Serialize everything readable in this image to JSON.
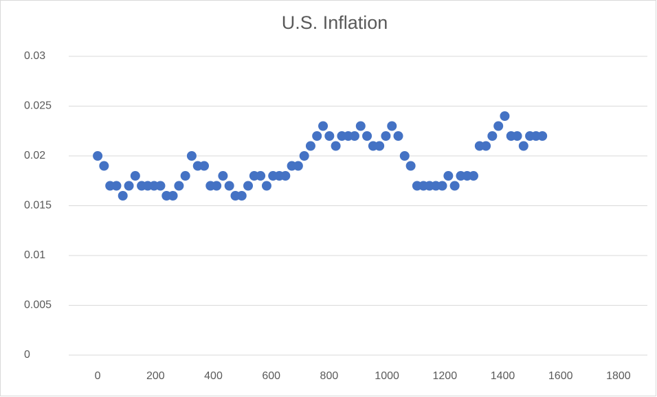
{
  "chart_data": {
    "type": "scatter",
    "title": "U.S. Inflation",
    "x": [
      0,
      22,
      43,
      65,
      87,
      108,
      130,
      152,
      173,
      195,
      217,
      238,
      260,
      281,
      303,
      325,
      346,
      368,
      390,
      411,
      433,
      455,
      476,
      498,
      520,
      541,
      563,
      584,
      606,
      628,
      649,
      671,
      693,
      714,
      736,
      758,
      779,
      801,
      823,
      844,
      866,
      888,
      909,
      931,
      952,
      974,
      996,
      1017,
      1039,
      1061,
      1082,
      1104,
      1126,
      1147,
      1169,
      1191,
      1212,
      1234,
      1255,
      1277,
      1299,
      1320,
      1342,
      1364,
      1385,
      1407,
      1429,
      1450,
      1472,
      1494,
      1515,
      1537
    ],
    "series": [
      {
        "color": "#4472c4",
        "values": [
          0.02,
          0.019,
          0.017,
          0.017,
          0.016,
          0.017,
          0.018,
          0.017,
          0.017,
          0.017,
          0.017,
          0.016,
          0.016,
          0.017,
          0.018,
          0.02,
          0.019,
          0.019,
          0.017,
          0.017,
          0.018,
          0.017,
          0.016,
          0.016,
          0.017,
          0.018,
          0.018,
          0.017,
          0.018,
          0.018,
          0.018,
          0.019,
          0.019,
          0.02,
          0.021,
          0.022,
          0.023,
          0.022,
          0.021,
          0.022,
          0.022,
          0.022,
          0.023,
          0.022,
          0.021,
          0.021,
          0.022,
          0.023,
          0.022,
          0.02,
          0.019,
          0.017,
          0.017,
          0.017,
          0.017,
          0.017,
          0.018,
          0.017,
          0.018,
          0.018,
          0.018,
          0.021,
          0.021,
          0.022,
          0.023,
          0.024,
          0.022,
          0.022,
          0.021,
          0.022,
          0.022,
          0.022
        ]
      }
    ],
    "xlim": [
      -100,
      1900
    ],
    "xticks": [
      0,
      200,
      400,
      600,
      800,
      1000,
      1200,
      1400,
      1600,
      1800
    ],
    "ylim": [
      0,
      0.03
    ],
    "yticks": [
      0,
      0.005,
      0.01,
      0.015,
      0.02,
      0.025,
      0.03
    ],
    "grid": true
  }
}
